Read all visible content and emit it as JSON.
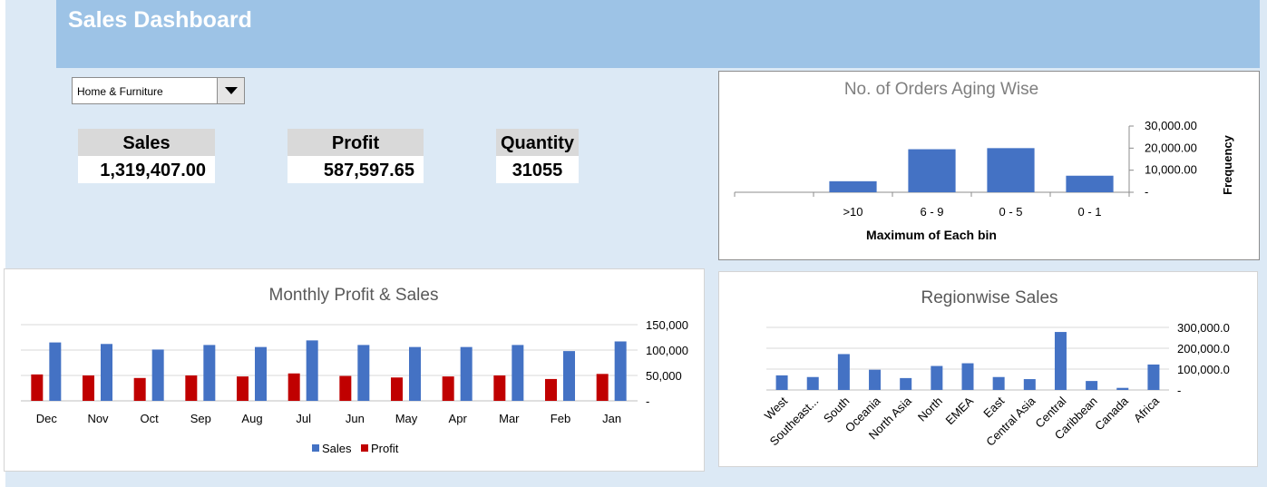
{
  "header": {
    "title": "Sales Dashboard"
  },
  "filter": {
    "selected": "Home & Furniture"
  },
  "kpis": {
    "sales": {
      "label": "Sales",
      "value": "1,319,407.00"
    },
    "profit": {
      "label": "Profit",
      "value": "587,597.65"
    },
    "quantity": {
      "label": "Quantity",
      "value": "31055"
    }
  },
  "colors": {
    "header": "#9dc3e6",
    "background": "#dce9f5",
    "sales_bar": "#4472c4",
    "profit_bar": "#c00000",
    "title_gray": "#7f7f7f"
  },
  "chart_data": [
    {
      "id": "aging",
      "type": "bar",
      "title": "No. of Orders Aging Wise",
      "xlabel": "Maximum of Each bin",
      "ylabel": "Frequency",
      "categories": [
        "",
        ">10",
        "6 - 9",
        "0 - 5",
        "0 - 1"
      ],
      "values": [
        0,
        5000,
        19500,
        20000,
        7500
      ],
      "y_ticks": [
        "30,000.00",
        "20,000.00",
        "10,000.00",
        "-"
      ],
      "ylim": [
        0,
        30000
      ],
      "grid": false
    },
    {
      "id": "monthly",
      "type": "bar",
      "title": "Monthly Profit & Sales",
      "categories": [
        "Dec",
        "Nov",
        "Oct",
        "Sep",
        "Aug",
        "Jul",
        "Jun",
        "May",
        "Apr",
        "Mar",
        "Feb",
        "Jan"
      ],
      "series": [
        {
          "name": "Sales",
          "values": [
            115000,
            112000,
            101000,
            110000,
            106000,
            119000,
            110000,
            106000,
            106000,
            110000,
            98000,
            117000
          ]
        },
        {
          "name": "Profit",
          "values": [
            52000,
            50000,
            45000,
            50000,
            48000,
            54000,
            49000,
            46000,
            48000,
            50000,
            43000,
            53000
          ]
        }
      ],
      "y_ticks": [
        "150,000",
        "100,000",
        "50,000",
        "-"
      ],
      "ylim": [
        0,
        150000
      ],
      "grid": true,
      "legend": "bottom"
    },
    {
      "id": "region",
      "type": "bar",
      "title": "Regionwise Sales",
      "categories": [
        "West",
        "Southeast...",
        "South",
        "Oceania",
        "North Asia",
        "North",
        "EMEA",
        "East",
        "Central Asia",
        "Central",
        "Caribbean",
        "Canada",
        "Africa"
      ],
      "values": [
        70000,
        62000,
        172000,
        97000,
        57000,
        115000,
        128000,
        62000,
        52000,
        278000,
        43000,
        10000,
        122000
      ],
      "y_ticks": [
        "300,000.0",
        "200,000.0",
        "100,000.0",
        "-"
      ],
      "ylim": [
        0,
        300000
      ],
      "grid": true
    }
  ]
}
